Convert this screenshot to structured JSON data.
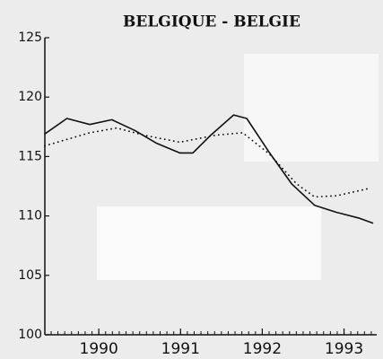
{
  "chart_data": {
    "type": "line",
    "title": "BELGIQUE - BELGIE",
    "xlim": [
      1989.84,
      1993.9
    ],
    "xticks": [
      {
        "value": 1990.5,
        "label": "1990"
      },
      {
        "value": 1991.5,
        "label": "1991"
      },
      {
        "value": 1992.5,
        "label": "1992"
      },
      {
        "value": 1993.5,
        "label": "1993"
      }
    ],
    "ylim": [
      100,
      125
    ],
    "yticks": [
      100,
      105,
      110,
      115,
      120,
      125
    ],
    "series": [
      {
        "color": "#111111",
        "style": "solid",
        "x": [
          1989.84,
          1990.11,
          1990.39,
          1990.66,
          1990.94,
          1991.21,
          1991.49,
          1991.65,
          1991.87,
          1992.15,
          1992.31,
          1992.59,
          1992.86,
          1993.14,
          1993.41,
          1993.69,
          1993.85
        ],
        "values": [
          116.9,
          118.2,
          117.7,
          118.1,
          117.2,
          116.1,
          115.3,
          115.3,
          116.8,
          118.5,
          118.2,
          115.3,
          112.7,
          110.9,
          110.3,
          109.8,
          109.4
        ]
      },
      {
        "color": "#111111",
        "style": "dotted",
        "x": [
          1989.84,
          1990.39,
          1990.72,
          1991.05,
          1991.49,
          1991.93,
          1992.26,
          1992.59,
          1992.92,
          1993.14,
          1993.41,
          1993.8
        ],
        "values": [
          115.9,
          117.0,
          117.4,
          116.8,
          116.2,
          116.8,
          117.0,
          115.2,
          112.7,
          111.6,
          111.7,
          112.3
        ]
      }
    ]
  }
}
